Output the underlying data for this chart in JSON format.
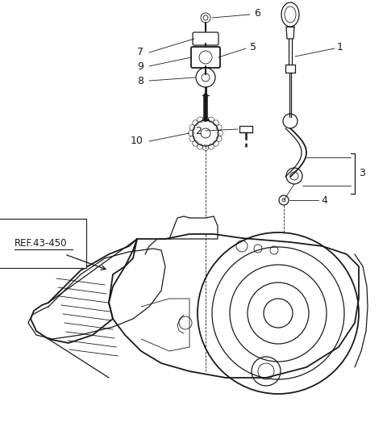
{
  "background_color": "#ffffff",
  "line_color": "#1a1a1a",
  "label_color": "#1a1a1a",
  "ref_label": "REF.43-450",
  "figsize": [
    4.8,
    5.34
  ],
  "dpi": 100,
  "lw": 0.9,
  "lw_thin": 0.6,
  "lw_thick": 1.3
}
